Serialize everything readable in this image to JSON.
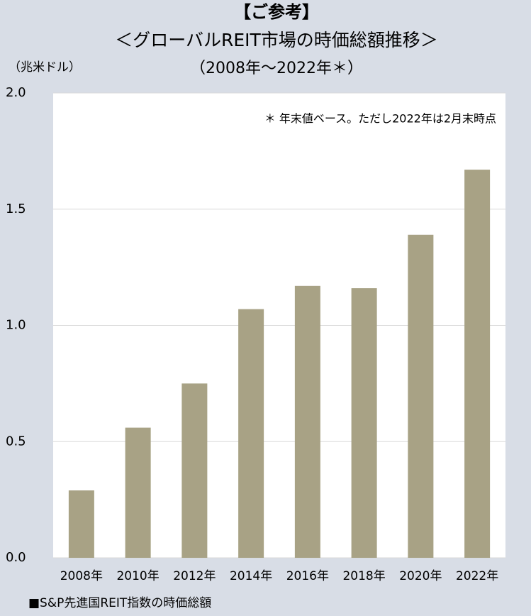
{
  "chart_data": {
    "type": "bar",
    "title": "【ご参考】",
    "subtitle": "＜グローバルREIT市場の時価総額推移＞",
    "period": "（2008年～2022年＊）",
    "y_axis_label": "（兆米ドル）",
    "annotation": "＊ 年末値ベース。ただし2022年は2月末時点",
    "footnote": "■S&P先進国REIT指数の時価総額",
    "categories": [
      "2008年",
      "2010年",
      "2012年",
      "2014年",
      "2016年",
      "2018年",
      "2020年",
      "2022年"
    ],
    "values": [
      0.29,
      0.56,
      0.75,
      1.07,
      1.17,
      1.16,
      1.39,
      1.67
    ],
    "color": "#a8a285",
    "ylim": [
      0,
      2
    ],
    "yticks": [
      {
        "value": 0,
        "label": "0.0"
      },
      {
        "value": 0.5,
        "label": "0.5"
      },
      {
        "value": 1,
        "label": "1.0"
      },
      {
        "value": 1.5,
        "label": "1.5"
      },
      {
        "value": 2,
        "label": "2.0"
      }
    ],
    "grid": true
  }
}
